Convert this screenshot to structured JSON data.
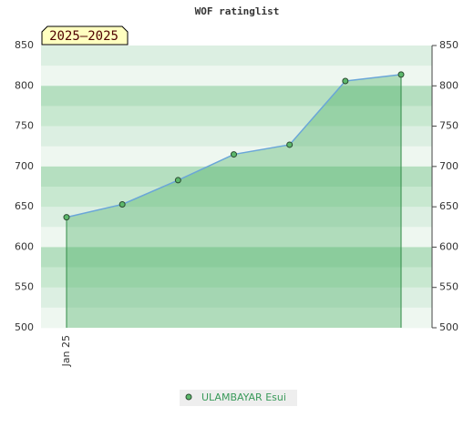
{
  "chart_data": {
    "type": "line",
    "title": "WOF ratinglist",
    "label": "2025–2025",
    "categories": [
      "Jan 25",
      null,
      null,
      null,
      null,
      null,
      null
    ],
    "series": [
      {
        "name": "ULAMBAYAR Esui",
        "color": "#5cb86b",
        "line_color": "#6aa6d8",
        "values": [
          637,
          653,
          683,
          715,
          727,
          806,
          814
        ]
      }
    ],
    "ylim": [
      500,
      850
    ],
    "yticks": [
      500,
      550,
      600,
      650,
      700,
      750,
      800,
      850
    ],
    "grid": true
  }
}
